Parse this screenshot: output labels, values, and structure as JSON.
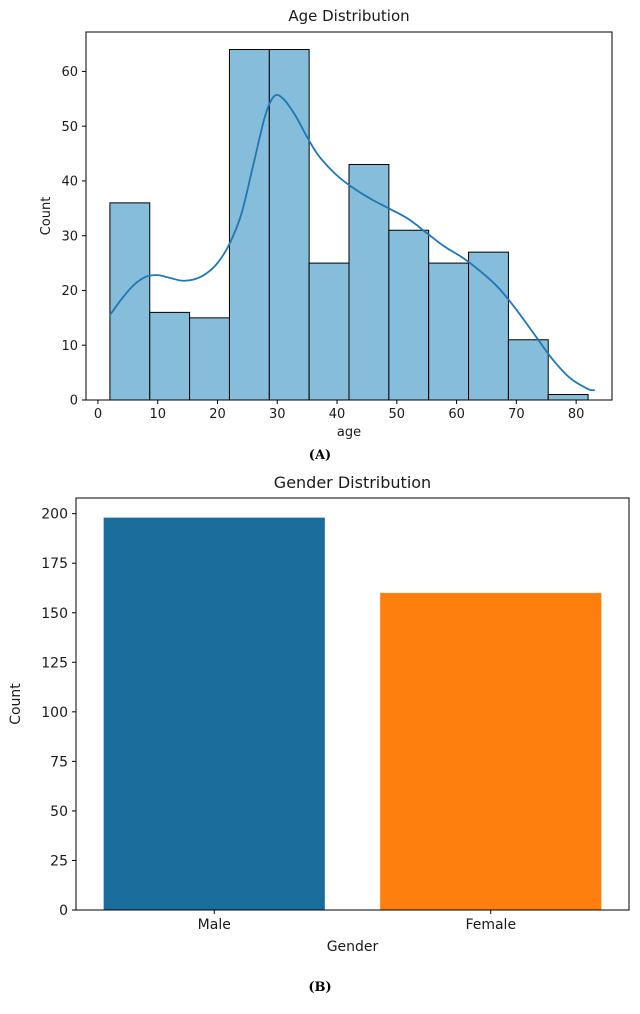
{
  "panels": {
    "a": "(A)",
    "b": "(B)"
  },
  "chart_data": [
    {
      "id": "age-histogram",
      "type": "histogram",
      "title": "Age Distribution",
      "xlabel": "age",
      "ylabel": "Count",
      "xlim": [
        -2,
        86
      ],
      "ylim": [
        0,
        67.2
      ],
      "xticks": [
        0,
        10,
        20,
        30,
        40,
        50,
        60,
        70,
        80
      ],
      "yticks": [
        0,
        10,
        20,
        30,
        40,
        50,
        60
      ],
      "grid": false,
      "bar_color": "#86bddb",
      "bar_edge_color": "#000000",
      "bin_edges": [
        2,
        8.67,
        15.33,
        22,
        28.67,
        35.33,
        42,
        48.67,
        55.33,
        62,
        68.67,
        75.33,
        82
      ],
      "counts": [
        36,
        16,
        15,
        64,
        64,
        25,
        43,
        31,
        25,
        27,
        11,
        1
      ],
      "kde": {
        "color": "#1f77b4",
        "x": [
          2,
          4,
          6,
          8,
          10,
          12,
          14,
          16,
          18,
          20,
          22,
          24,
          26,
          28,
          29.5,
          31,
          33,
          35,
          37,
          40,
          43,
          46,
          49,
          52,
          55,
          58,
          61,
          64,
          67,
          70,
          73,
          76,
          79,
          82,
          83
        ],
        "y": [
          15.5,
          18.5,
          21,
          22.5,
          22.8,
          22.3,
          21.8,
          22,
          23,
          25,
          28.5,
          34,
          43,
          52,
          55.5,
          55,
          52,
          48,
          44.5,
          41,
          38.5,
          36.5,
          34.8,
          33,
          30.5,
          28,
          26,
          23.5,
          20.5,
          16.5,
          12,
          7.5,
          4,
          2,
          1.8
        ]
      }
    },
    {
      "id": "gender-bar",
      "type": "bar",
      "title": "Gender Distribution",
      "xlabel": "Gender",
      "ylabel": "Count",
      "categories": [
        "Male",
        "Female"
      ],
      "values": [
        198,
        160
      ],
      "colors": [
        "#1b6d9c",
        "#ff7f0e"
      ],
      "ylim": [
        0,
        207.9
      ],
      "yticks": [
        0,
        25,
        50,
        75,
        100,
        125,
        150,
        175,
        200
      ],
      "grid": false,
      "legend": "none"
    }
  ]
}
